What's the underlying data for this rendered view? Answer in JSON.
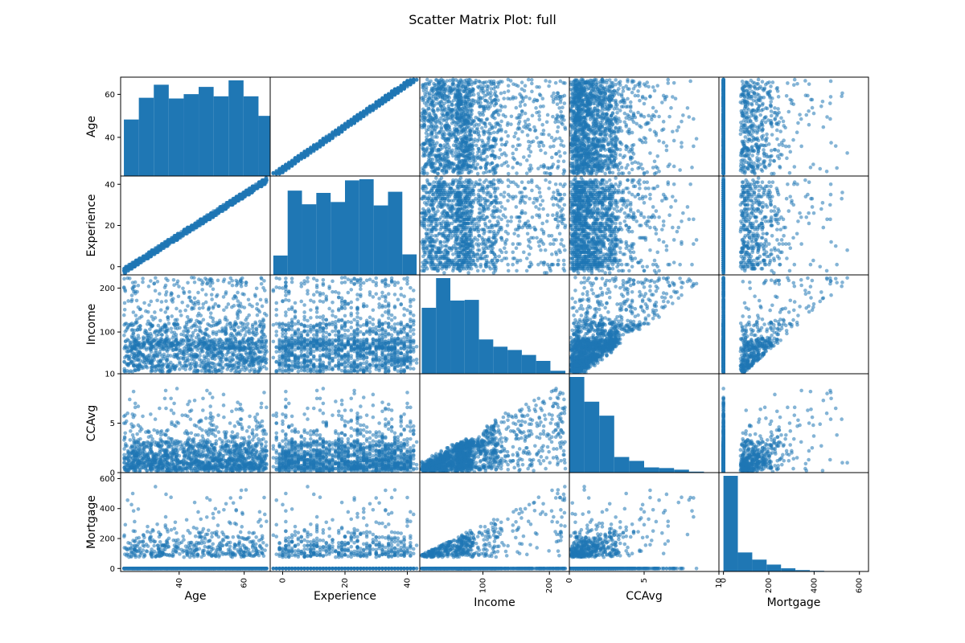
{
  "chart_data": {
    "type": "scatter",
    "title": "Scatter Matrix Plot: full",
    "variables": [
      "Age",
      "Experience",
      "Income",
      "CCAvg",
      "Mortgage"
    ],
    "ranges": {
      "Age": [
        22,
        68
      ],
      "Experience": [
        -4,
        44
      ],
      "Income": [
        5,
        230
      ],
      "CCAvg": [
        0,
        10
      ],
      "Mortgage": [
        -20,
        640
      ]
    },
    "ticks": {
      "Age": [
        40,
        60
      ],
      "Experience": [
        0,
        20,
        40
      ],
      "Income": [
        100,
        200
      ],
      "CCAvg": [
        0,
        5,
        10
      ],
      "Mortgage": [
        0,
        200,
        400,
        600
      ]
    },
    "diagonal": "histogram",
    "histograms": {
      "Age": {
        "bins": [
          23,
          27.6,
          32.2,
          36.8,
          41.4,
          46,
          50.6,
          55.2,
          59.8,
          64.4,
          69
        ],
        "counts": [
          390,
          540,
          630,
          535,
          565,
          615,
          550,
          660,
          550,
          415
        ]
      },
      "Experience": {
        "bins": [
          -3,
          1.6,
          6.2,
          10.8,
          15.4,
          20,
          24.6,
          29.2,
          33.8,
          38.4,
          43
        ],
        "counts": [
          85,
          370,
          310,
          360,
          320,
          415,
          420,
          305,
          365,
          90
        ]
      },
      "Income": {
        "bins": [
          8,
          29.5,
          51,
          72.5,
          94,
          115.5,
          137,
          158.5,
          180,
          201.5,
          224
        ],
        "counts": [
          1000,
          1450,
          1110,
          1120,
          520,
          410,
          360,
          285,
          195,
          45
        ]
      },
      "CCAvg": {
        "bins": [
          0,
          1,
          2,
          3,
          4,
          5,
          6,
          7,
          8,
          9,
          10
        ],
        "counts": [
          1470,
          1090,
          875,
          240,
          180,
          80,
          70,
          45,
          15,
          5
        ]
      },
      "Mortgage": {
        "bins": [
          0,
          63.5,
          127,
          190.5,
          254,
          317.5,
          381,
          444.5,
          508,
          571.5,
          635
        ],
        "counts": [
          3470,
          690,
          430,
          250,
          115,
          50,
          25,
          8,
          5,
          2
        ]
      }
    },
    "series": [
      {
        "name": "",
        "color": "#1f77b4",
        "sample_size": 1500,
        "distributions": {
          "Age": {
            "min": 23,
            "max": 67
          },
          "Experience": {
            "min": -3,
            "max": 43
          },
          "Income": {
            "min": 8,
            "max": 224
          },
          "CCAvg": {
            "min": 0,
            "max": 10
          },
          "Mortgage": {
            "min": 0,
            "max": 635
          }
        }
      }
    ],
    "grid": false,
    "legend": "none"
  }
}
